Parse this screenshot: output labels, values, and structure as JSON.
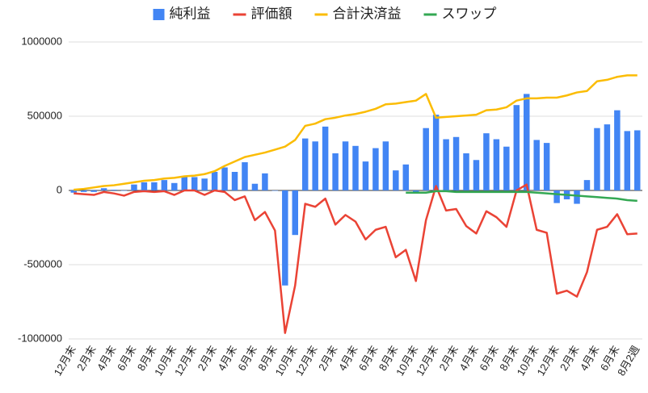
{
  "chart_data": {
    "type": "combo",
    "categories": [
      "12月末",
      null,
      "2月末",
      null,
      "4月末",
      null,
      "6月末",
      null,
      "8月末",
      null,
      "10月末",
      null,
      "12月末",
      null,
      "2月末",
      null,
      "4月末",
      null,
      "6月末",
      null,
      "8月末",
      null,
      "10月末",
      null,
      "12月末",
      null,
      "2月末",
      null,
      "4月末",
      null,
      "6月末",
      null,
      "8月末",
      null,
      "10月末",
      null,
      "12月末",
      null,
      "2月末",
      null,
      "4月末",
      null,
      "6月末",
      null,
      "8月末",
      null,
      "10月末",
      null,
      "12月末",
      null,
      "2月末",
      null,
      "4月末",
      null,
      "6月末",
      null,
      "8月2週"
    ],
    "series": [
      {
        "name": "純利益",
        "type": "bar",
        "color": "#4285f4",
        "values": [
          -15000,
          -10000,
          -10000,
          15000,
          5000,
          0,
          40000,
          55000,
          55000,
          70000,
          50000,
          90000,
          90000,
          80000,
          125000,
          155000,
          125000,
          190000,
          45000,
          115000,
          0,
          -640000,
          -300000,
          350000,
          330000,
          430000,
          250000,
          330000,
          300000,
          195000,
          285000,
          330000,
          135000,
          175000,
          -15000,
          420000,
          510000,
          345000,
          360000,
          250000,
          205000,
          385000,
          345000,
          295000,
          575000,
          650000,
          340000,
          320000,
          -85000,
          -60000,
          -90000,
          70000,
          420000,
          445000,
          540000,
          400000,
          405000
        ]
      },
      {
        "name": "評価額",
        "type": "line",
        "color": "#ea4335",
        "values": [
          -20000,
          -25000,
          -30000,
          -10000,
          -20000,
          -35000,
          -10000,
          -5000,
          -10000,
          -5000,
          -30000,
          0,
          0,
          -30000,
          0,
          -10000,
          -65000,
          -40000,
          -200000,
          -145000,
          -270000,
          -960000,
          -640000,
          -90000,
          -110000,
          -55000,
          -230000,
          -165000,
          -210000,
          -330000,
          -265000,
          -245000,
          -450000,
          -400000,
          -610000,
          -200000,
          30000,
          -135000,
          -125000,
          -240000,
          -290000,
          -140000,
          -180000,
          -245000,
          0,
          40000,
          -265000,
          -285000,
          -695000,
          -675000,
          -715000,
          -550000,
          -265000,
          -245000,
          -160000,
          -295000,
          -290000
        ]
      },
      {
        "name": "合計決済益",
        "type": "line",
        "color": "#fbbc04",
        "values": [
          5000,
          10000,
          20000,
          30000,
          35000,
          45000,
          55000,
          65000,
          70000,
          80000,
          85000,
          95000,
          100000,
          110000,
          130000,
          165000,
          195000,
          225000,
          240000,
          255000,
          275000,
          295000,
          340000,
          435000,
          450000,
          480000,
          490000,
          505000,
          515000,
          530000,
          550000,
          580000,
          585000,
          595000,
          605000,
          650000,
          490000,
          495000,
          500000,
          505000,
          510000,
          540000,
          545000,
          560000,
          605000,
          620000,
          620000,
          625000,
          625000,
          640000,
          660000,
          670000,
          735000,
          745000,
          765000,
          775000,
          775000
        ]
      },
      {
        "name": "スワップ",
        "type": "line",
        "color": "#34a853",
        "values": [
          null,
          null,
          null,
          null,
          null,
          null,
          null,
          null,
          null,
          null,
          null,
          null,
          null,
          null,
          null,
          null,
          null,
          null,
          null,
          null,
          null,
          null,
          null,
          null,
          null,
          null,
          null,
          null,
          null,
          null,
          null,
          null,
          null,
          -15000,
          -15000,
          -15000,
          -5000,
          -5000,
          -10000,
          -10000,
          -10000,
          -10000,
          -10000,
          -10000,
          -10000,
          -10000,
          -15000,
          -20000,
          -25000,
          -30000,
          -35000,
          -40000,
          -45000,
          -50000,
          -55000,
          -65000,
          -70000
        ]
      }
    ],
    "ylim": [
      -1000000,
      1000000
    ],
    "yticks": [
      1000000,
      500000,
      0,
      -500000,
      -1000000
    ],
    "grid": true,
    "legend": "top"
  }
}
